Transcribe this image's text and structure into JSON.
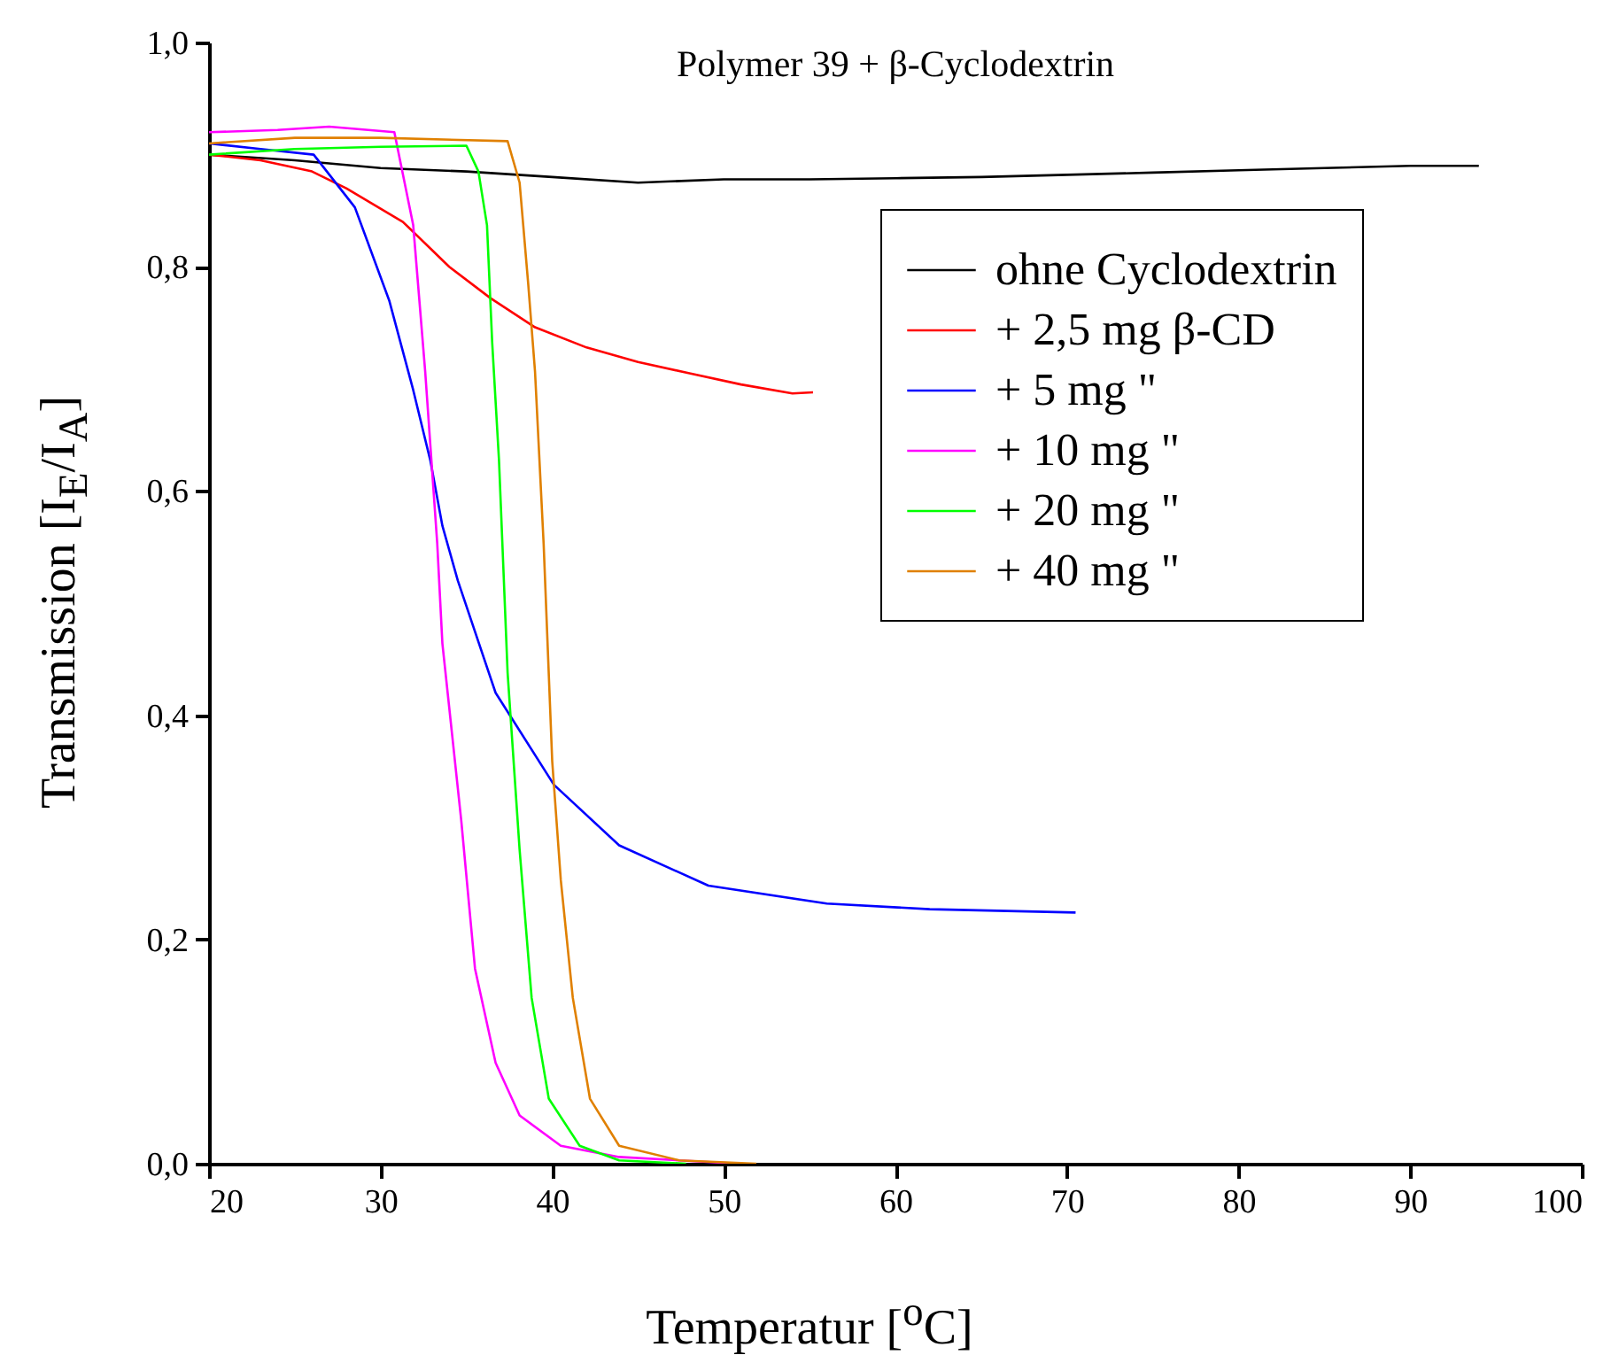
{
  "chart_data": {
    "type": "line",
    "title": "Polymer 39 + β-Cyclodextrin",
    "xlabel": "Temperatur [$^{o}$C]",
    "ylabel": "Transmission [I$_{E}$/I$_{A}$]",
    "xlim": [
      20,
      100
    ],
    "xticks": [
      20,
      30,
      40,
      50,
      60,
      70,
      80,
      90,
      100
    ],
    "ylim": [
      0,
      1
    ],
    "yticks": [
      {
        "value": 0,
        "label": "0,0"
      },
      {
        "value": 0.2,
        "label": "0,2"
      },
      {
        "value": 0.4,
        "label": "0,4"
      },
      {
        "value": 0.6,
        "label": "0,6"
      },
      {
        "value": 0.8,
        "label": "0,8"
      },
      {
        "value": 1,
        "label": "1,0"
      }
    ],
    "grid": false,
    "legend": "top right",
    "marker": "none",
    "line_style": "solid",
    "series": [
      {
        "name": "ohne Cyclodextrin",
        "color": "#000000",
        "x": [
          20,
          25,
          30,
          35,
          40,
          45,
          50,
          55,
          60,
          65,
          70,
          75,
          80,
          85,
          90,
          94
        ],
        "values": [
          0.9,
          0.895,
          0.888,
          0.885,
          0.88,
          0.875,
          0.878,
          0.878,
          0.879,
          0.88,
          0.882,
          0.884,
          0.886,
          0.888,
          0.89,
          0.89
        ]
      },
      {
        "name": "+ 2,5 mg β-CD",
        "color": "#ff0000",
        "x": [
          20,
          23,
          26,
          28,
          31.3,
          34,
          36.4,
          39,
          42,
          45,
          48,
          51,
          54,
          55.2
        ],
        "values": [
          0.9,
          0.895,
          0.885,
          0.87,
          0.84,
          0.8,
          0.772,
          0.746,
          0.728,
          0.715,
          0.705,
          0.695,
          0.687,
          0.688
        ]
      },
      {
        "name": "+ 5 mg \"",
        "color": "#0000ff",
        "x": [
          20,
          23,
          26.1,
          28.5,
          30.5,
          31.9,
          32.9,
          33.6,
          34.5,
          36.7,
          40.1,
          43.9,
          49.1,
          56,
          62,
          70.5
        ],
        "values": [
          0.91,
          0.905,
          0.9,
          0.853,
          0.77,
          0.69,
          0.627,
          0.569,
          0.52,
          0.42,
          0.338,
          0.284,
          0.248,
          0.232,
          0.227,
          0.224
        ]
      },
      {
        "name": "+ 10 mg \"",
        "color": "#ff00ff",
        "x": [
          20,
          24,
          27,
          30.8,
          31.9,
          32.6,
          33.3,
          33.6,
          34.7,
          35.5,
          36.7,
          38.1,
          40.5,
          43.9,
          50.9
        ],
        "values": [
          0.92,
          0.922,
          0.925,
          0.92,
          0.837,
          0.706,
          0.553,
          0.464,
          0.306,
          0.174,
          0.09,
          0.043,
          0.016,
          0.006,
          0.0
        ]
      },
      {
        "name": "+ 20 mg \"",
        "color": "#00ff00",
        "x": [
          20,
          25,
          30,
          35,
          35.7,
          36.2,
          36.5,
          36.9,
          37.4,
          38.1,
          38.8,
          39.8,
          41.6,
          43.9,
          47.8
        ],
        "values": [
          0.9,
          0.905,
          0.907,
          0.908,
          0.885,
          0.837,
          0.733,
          0.627,
          0.438,
          0.28,
          0.148,
          0.058,
          0.016,
          0.003,
          0.0
        ]
      },
      {
        "name": "+ 40 mg \"",
        "color": "#e08000",
        "x": [
          20,
          25,
          30,
          37.4,
          38.1,
          38.6,
          39,
          39.5,
          40,
          40.5,
          41.2,
          42.2,
          43.9,
          47.4,
          51.9
        ],
        "values": [
          0.91,
          0.915,
          0.915,
          0.912,
          0.875,
          0.785,
          0.706,
          0.553,
          0.359,
          0.253,
          0.148,
          0.058,
          0.016,
          0.003,
          0.0
        ]
      }
    ]
  }
}
